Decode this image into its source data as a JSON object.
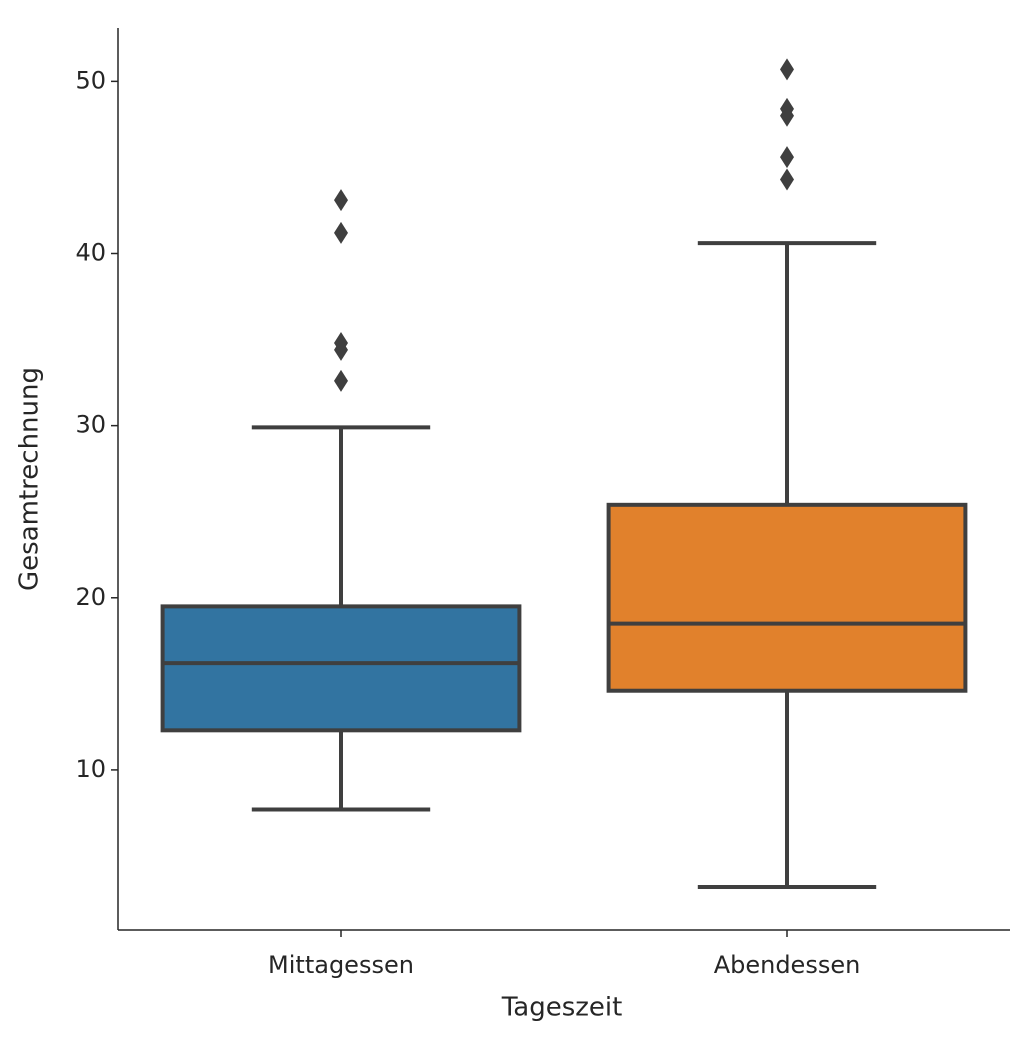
{
  "chart_data": {
    "type": "box",
    "x_label": "Tageszeit",
    "y_label": "Gesamtrechnung",
    "categories": [
      "Mittagessen",
      "Abendessen"
    ],
    "colors": [
      "#3274a1",
      "#e1812c"
    ],
    "boxes": [
      {
        "min": 7.7,
        "q1": 12.3,
        "median": 16.2,
        "q3": 19.5,
        "max": 29.9,
        "outliers": [
          43.1,
          41.2,
          34.8,
          34.4,
          32.6
        ]
      },
      {
        "min": 3.2,
        "q1": 14.6,
        "median": 18.5,
        "q3": 25.4,
        "max": 40.6,
        "outliers": [
          50.7,
          48.4,
          48.0,
          45.6,
          44.3
        ]
      }
    ],
    "ylim": [
      0.7,
      53.1
    ],
    "yticks": [
      10,
      20,
      30,
      40,
      50
    ],
    "grid": false
  }
}
